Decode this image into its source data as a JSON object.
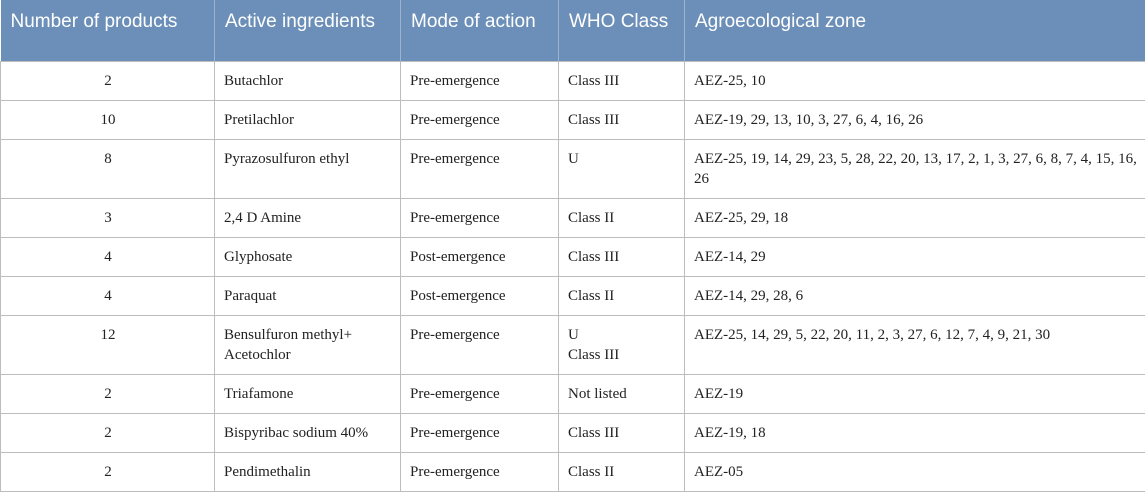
{
  "table": {
    "headers": [
      "Number of products",
      "Active ingredients",
      "Mode of action",
      "WHO Class",
      "Agroecological zone"
    ],
    "rows": [
      {
        "number": "2",
        "ingredient": "Butachlor",
        "mode": "Pre-emergence",
        "who_class": [
          "Class III"
        ],
        "zones": "AEZ-25, 10"
      },
      {
        "number": "10",
        "ingredient": "Pretilachlor",
        "mode": "Pre-emergence",
        "who_class": [
          "Class III"
        ],
        "zones": "AEZ-19, 29, 13, 10, 3, 27, 6, 4, 16, 26"
      },
      {
        "number": "8",
        "ingredient": "Pyrazosulfuron ethyl",
        "mode": "Pre-emergence",
        "who_class": [
          "U"
        ],
        "zones": "AEZ-25, 19, 14, 29, 23, 5, 28, 22, 20, 13, 17, 2, 1, 3, 27, 6, 8, 7, 4, 15, 16, 26"
      },
      {
        "number": "3",
        "ingredient": "2,4 D Amine",
        "mode": "Pre-emergence",
        "who_class": [
          "Class II"
        ],
        "zones": "AEZ-25, 29, 18"
      },
      {
        "number": "4",
        "ingredient": "Glyphosate",
        "mode": "Post-emergence",
        "who_class": [
          "Class III"
        ],
        "zones": "AEZ-14, 29"
      },
      {
        "number": "4",
        "ingredient": "Paraquat",
        "mode": "Post-emergence",
        "who_class": [
          "Class II"
        ],
        "zones": "AEZ-14, 29, 28, 6"
      },
      {
        "number": "12",
        "ingredient": "Bensulfuron methyl+ Acetochlor",
        "mode": "Pre-emergence",
        "who_class": [
          "U",
          "Class III"
        ],
        "zones": "AEZ-25, 14, 29, 5, 22, 20, 11, 2, 3, 27, 6, 12, 7, 4, 9, 21, 30"
      },
      {
        "number": "2",
        "ingredient": "Triafamone",
        "mode": "Pre-emergence",
        "who_class": [
          "Not listed"
        ],
        "zones": "AEZ-19"
      },
      {
        "number": "2",
        "ingredient": "Bispyribac sodium 40%",
        "mode": "Pre-emergence",
        "who_class": [
          "Class III"
        ],
        "zones": "AEZ-19, 18"
      },
      {
        "number": "2",
        "ingredient": "Pendimethalin",
        "mode": "Pre-emergence",
        "who_class": [
          "Class II"
        ],
        "zones": "AEZ-05"
      }
    ]
  },
  "colors": {
    "header_bg": "#6b8fb8",
    "header_text": "#ffffff",
    "border": "#bdbdbd"
  }
}
